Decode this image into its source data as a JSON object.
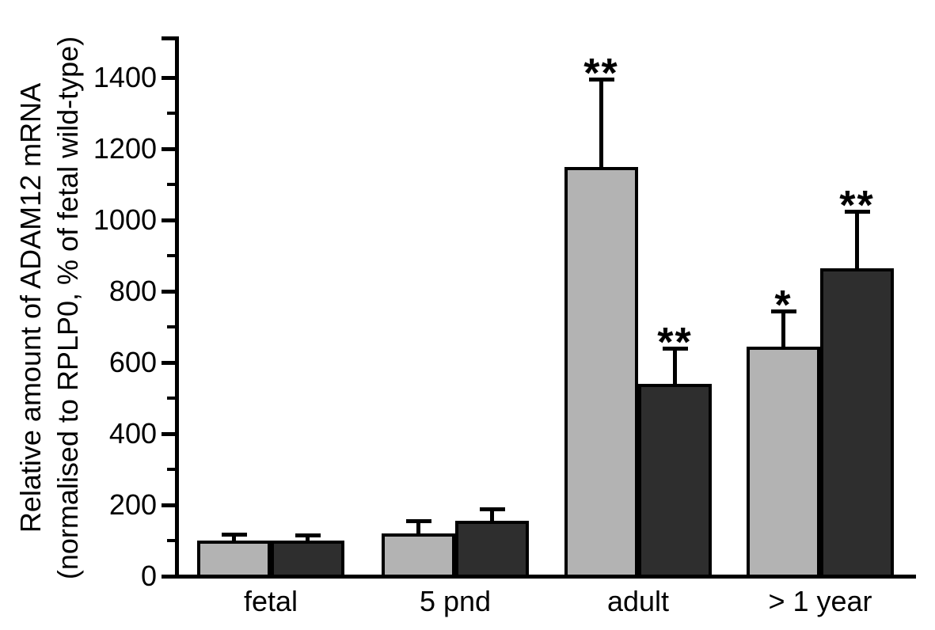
{
  "chart_data": {
    "type": "bar",
    "title": "",
    "ylabel_lines": [
      "Relative amount of ADAM12 mRNA",
      "(normalised to RPLP0, % of fetal wild-type)"
    ],
    "categories": [
      "fetal",
      "5 pnd",
      "adult",
      "> 1 year"
    ],
    "series": [
      {
        "name": "light-gray-bars",
        "color": "#b3b3b3",
        "values": [
          100,
          120,
          1150,
          645
        ],
        "errors_plus": [
          18,
          35,
          245,
          100
        ],
        "significance": [
          "",
          "",
          "**",
          "*"
        ]
      },
      {
        "name": "dark-gray-bars",
        "color": "#2e2e2e",
        "values": [
          100,
          155,
          540,
          865
        ],
        "errors_plus": [
          15,
          35,
          100,
          160
        ],
        "significance": [
          "",
          "",
          "**",
          "**"
        ]
      }
    ],
    "y_axis": {
      "min": 0,
      "max": 1400,
      "major_tick_step": 200,
      "minor_tick_step": 100,
      "tick_labels": [
        "0",
        "200",
        "400",
        "600",
        "800",
        "1000",
        "1200",
        "1400"
      ]
    },
    "legend": "none",
    "grid": false,
    "bar_outline_color": "#000000",
    "error_bar_color": "#000000",
    "significance_marker_color": "#000000",
    "background_color": "#ffffff"
  }
}
